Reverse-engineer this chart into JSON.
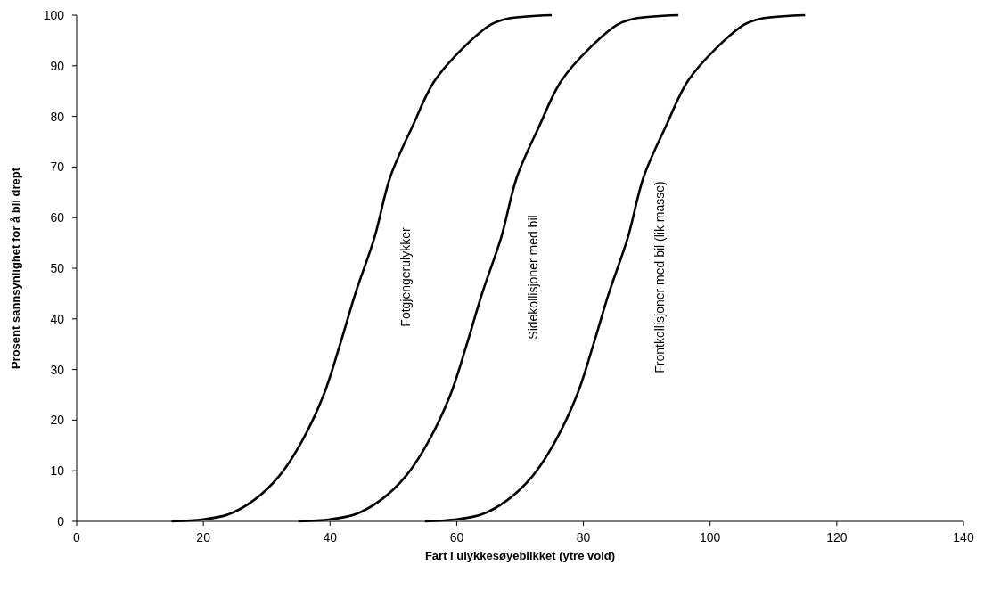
{
  "chart_data": {
    "type": "line",
    "xlabel": "Fart i ulykkesøyeblikket (ytre vold)",
    "ylabel": "Prosent sannsynlighet for å bli drept",
    "xlim": [
      0,
      140
    ],
    "xticks": [
      0,
      20,
      40,
      60,
      80,
      100,
      120,
      140
    ],
    "ylim": [
      0,
      100
    ],
    "yticks": [
      0,
      10,
      20,
      30,
      40,
      50,
      60,
      70,
      80,
      90,
      100
    ],
    "grid": false,
    "marker": "none",
    "line_style": "solid",
    "series": [
      {
        "name": "Fotgjengerulykker",
        "color": "#000000",
        "x": [
          15,
          20,
          24,
          28,
          32,
          35.5,
          39,
          41.5,
          44,
          47,
          49.5,
          53,
          56.5,
          61,
          65.5,
          68,
          75
        ],
        "values": [
          0,
          0.4,
          1.4,
          4.2,
          9,
          15.7,
          25,
          34.6,
          45,
          56,
          68,
          78,
          87,
          93.5,
          98.2,
          99.3,
          100
        ]
      },
      {
        "name": "Sidekollisjoner med bil",
        "color": "#000000",
        "x": [
          35,
          40,
          44,
          48,
          52,
          55.5,
          59,
          61.5,
          64,
          67,
          69.5,
          73,
          76.5,
          81,
          85.5,
          88,
          95
        ],
        "values": [
          0,
          0.4,
          1.4,
          4.2,
          9,
          15.7,
          25,
          34.6,
          45,
          56,
          68,
          78,
          87,
          93.5,
          98.2,
          99.3,
          100
        ]
      },
      {
        "name": "Frontkollisjoner med bil (lik masse)",
        "color": "#000000",
        "x": [
          55,
          60,
          64,
          68,
          72,
          75.5,
          79,
          81.5,
          84,
          87,
          89.5,
          93,
          96.5,
          101,
          105.5,
          108,
          115
        ],
        "values": [
          0,
          0.4,
          1.4,
          4.2,
          9,
          15.7,
          25,
          34.6,
          45,
          56,
          68,
          78,
          87,
          93.5,
          98.2,
          99.3,
          100
        ]
      }
    ]
  }
}
